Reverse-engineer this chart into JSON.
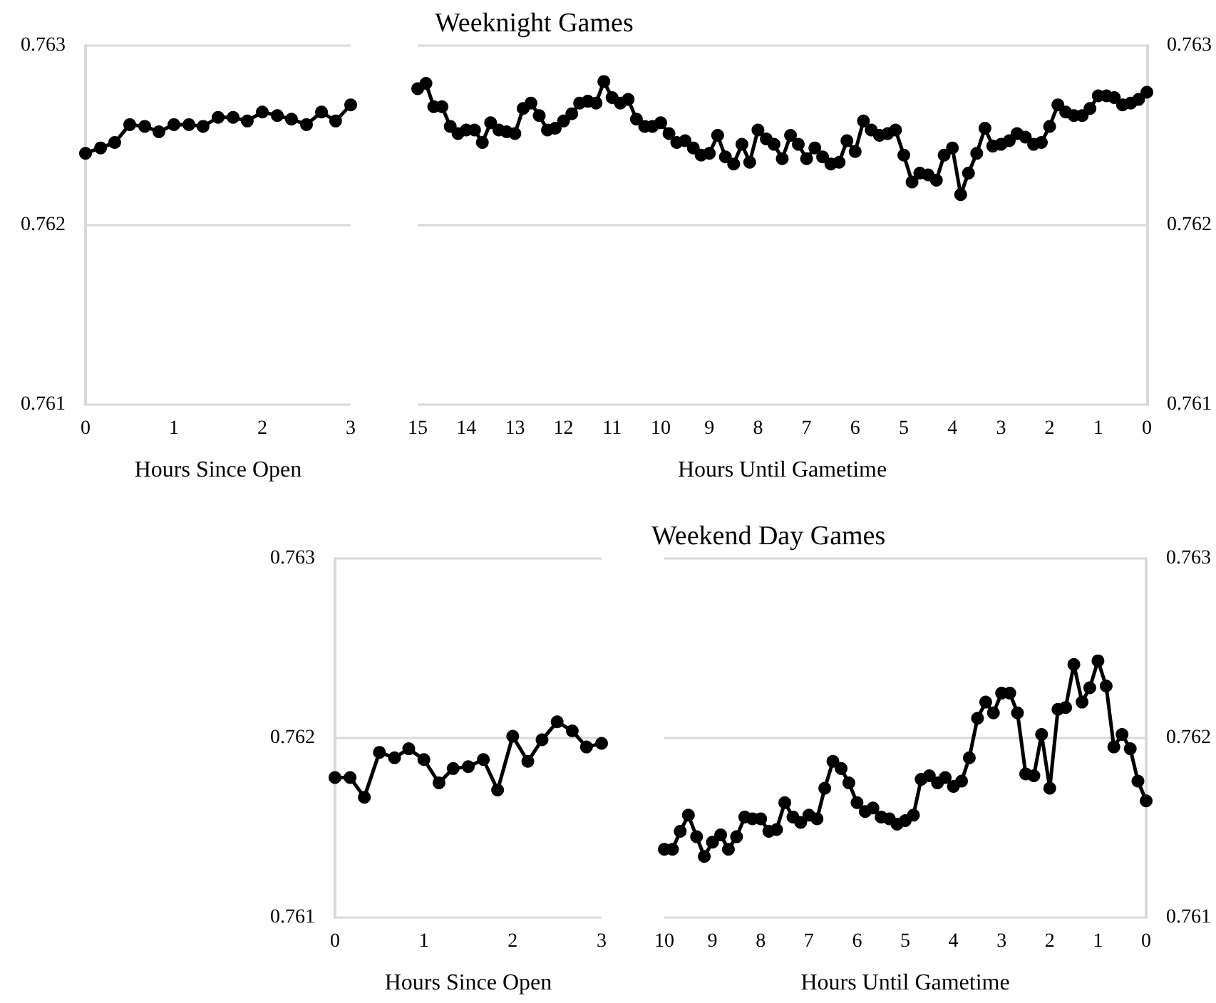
{
  "chart_data": [
    {
      "type": "line",
      "xlabel": "Hours Since Open",
      "x": [
        0,
        0.17,
        0.33,
        0.5,
        0.67,
        0.83,
        1,
        1.17,
        1.33,
        1.5,
        1.67,
        1.83,
        2,
        2.17,
        2.33,
        2.5,
        2.67,
        2.83,
        3
      ],
      "series": [
        {
          "color": "#000000",
          "values": [
            0.7624,
            0.76243,
            0.76246,
            0.76256,
            0.76255,
            0.76252,
            0.76256,
            0.76256,
            0.76255,
            0.7626,
            0.7626,
            0.76258,
            0.76263,
            0.76261,
            0.76259,
            0.76256,
            0.76263,
            0.76258,
            0.76267
          ]
        }
      ],
      "xlim": [
        0,
        3
      ],
      "xticks": [
        0,
        1,
        2,
        3
      ],
      "ylim": [
        0.761,
        0.763
      ],
      "yticks": [
        0.761,
        0.762,
        0.763
      ],
      "grid": "y",
      "marker": "circle"
    },
    {
      "type": "line",
      "title": "Weeknight Games",
      "xlabel": "Hours Until Gametime",
      "x": [
        15,
        14.83,
        14.67,
        14.5,
        14.33,
        14.17,
        14,
        13.83,
        13.67,
        13.5,
        13.33,
        13.17,
        13,
        12.83,
        12.67,
        12.5,
        12.33,
        12.17,
        12,
        11.83,
        11.67,
        11.5,
        11.33,
        11.17,
        11,
        10.83,
        10.67,
        10.5,
        10.33,
        10.17,
        10,
        9.83,
        9.67,
        9.5,
        9.33,
        9.17,
        9,
        8.83,
        8.67,
        8.5,
        8.33,
        8.17,
        8,
        7.83,
        7.67,
        7.5,
        7.33,
        7.17,
        7,
        6.83,
        6.67,
        6.5,
        6.33,
        6.17,
        6,
        5.83,
        5.67,
        5.5,
        5.33,
        5.17,
        5,
        4.83,
        4.67,
        4.5,
        4.33,
        4.17,
        4,
        3.83,
        3.67,
        3.5,
        3.33,
        3.17,
        3,
        2.83,
        2.67,
        2.5,
        2.33,
        2.17,
        2,
        1.83,
        1.67,
        1.5,
        1.33,
        1.17,
        1,
        0.83,
        0.67,
        0.5,
        0.33,
        0.17,
        0
      ],
      "series": [
        {
          "color": "#000000",
          "values": [
            0.76276,
            0.76279,
            0.76266,
            0.76266,
            0.76255,
            0.76251,
            0.76253,
            0.76253,
            0.76246,
            0.76257,
            0.76253,
            0.76252,
            0.76251,
            0.76265,
            0.76268,
            0.76261,
            0.76253,
            0.76254,
            0.76258,
            0.76262,
            0.76268,
            0.76269,
            0.76268,
            0.7628,
            0.76271,
            0.76268,
            0.7627,
            0.76259,
            0.76255,
            0.76255,
            0.76257,
            0.76251,
            0.76246,
            0.76247,
            0.76243,
            0.76239,
            0.7624,
            0.7625,
            0.76238,
            0.76234,
            0.76245,
            0.76235,
            0.76253,
            0.76248,
            0.76245,
            0.76237,
            0.7625,
            0.76245,
            0.76237,
            0.76243,
            0.76238,
            0.76234,
            0.76235,
            0.76247,
            0.76241,
            0.76258,
            0.76253,
            0.7625,
            0.76251,
            0.76253,
            0.76239,
            0.76224,
            0.76229,
            0.76228,
            0.76225,
            0.76239,
            0.76243,
            0.76217,
            0.76229,
            0.7624,
            0.76254,
            0.76244,
            0.76245,
            0.76247,
            0.76251,
            0.76249,
            0.76245,
            0.76246,
            0.76255,
            0.76267,
            0.76263,
            0.76261,
            0.76261,
            0.76265,
            0.76272,
            0.76272,
            0.76271,
            0.76267,
            0.76268,
            0.7627,
            0.76274
          ]
        }
      ],
      "xlim": [
        15,
        0
      ],
      "xticks": [
        15,
        14,
        13,
        12,
        11,
        10,
        9,
        8,
        7,
        6,
        5,
        4,
        3,
        2,
        1,
        0
      ],
      "ylim": [
        0.761,
        0.763
      ],
      "yticks": [
        0.761,
        0.762,
        0.763
      ],
      "grid": "y",
      "marker": "circle"
    },
    {
      "type": "line",
      "xlabel": "Hours Since Open",
      "x": [
        0,
        0.17,
        0.33,
        0.5,
        0.67,
        0.83,
        1,
        1.17,
        1.33,
        1.5,
        1.67,
        1.83,
        2,
        2.17,
        2.33,
        2.5,
        2.67,
        2.83,
        3
      ],
      "series": [
        {
          "color": "#000000",
          "values": [
            0.76178,
            0.76178,
            0.76167,
            0.76192,
            0.76189,
            0.76194,
            0.76188,
            0.76175,
            0.76183,
            0.76184,
            0.76188,
            0.76171,
            0.76201,
            0.76187,
            0.76199,
            0.76209,
            0.76204,
            0.76195,
            0.76197
          ]
        }
      ],
      "xlim": [
        0,
        3
      ],
      "xticks": [
        0,
        1,
        2,
        3
      ],
      "ylim": [
        0.761,
        0.763
      ],
      "yticks": [
        0.761,
        0.762,
        0.763
      ],
      "grid": "y",
      "marker": "circle"
    },
    {
      "type": "line",
      "title": "Weekend Day Games",
      "xlabel": "Hours Until Gametime",
      "x": [
        10,
        9.83,
        9.67,
        9.5,
        9.33,
        9.17,
        9,
        8.83,
        8.67,
        8.5,
        8.33,
        8.17,
        8,
        7.83,
        7.67,
        7.5,
        7.33,
        7.17,
        7,
        6.83,
        6.67,
        6.5,
        6.33,
        6.17,
        6,
        5.83,
        5.67,
        5.5,
        5.33,
        5.17,
        5,
        4.83,
        4.67,
        4.5,
        4.33,
        4.17,
        4,
        3.83,
        3.67,
        3.5,
        3.33,
        3.17,
        3,
        2.83,
        2.67,
        2.5,
        2.33,
        2.17,
        2,
        1.83,
        1.67,
        1.5,
        1.33,
        1.17,
        1,
        0.83,
        0.67,
        0.5,
        0.33,
        0.17,
        0
      ],
      "series": [
        {
          "color": "#000000",
          "values": [
            0.76138,
            0.76138,
            0.76148,
            0.76157,
            0.76145,
            0.76134,
            0.76142,
            0.76146,
            0.76138,
            0.76145,
            0.76156,
            0.76155,
            0.76155,
            0.76148,
            0.76149,
            0.76164,
            0.76156,
            0.76153,
            0.76157,
            0.76155,
            0.76172,
            0.76187,
            0.76183,
            0.76175,
            0.76164,
            0.76159,
            0.76161,
            0.76156,
            0.76155,
            0.76152,
            0.76154,
            0.76157,
            0.76177,
            0.76179,
            0.76175,
            0.76178,
            0.76173,
            0.76176,
            0.76189,
            0.76211,
            0.7622,
            0.76214,
            0.76225,
            0.76225,
            0.76214,
            0.7618,
            0.76179,
            0.76202,
            0.76172,
            0.76216,
            0.76217,
            0.76241,
            0.7622,
            0.76228,
            0.76243,
            0.76229,
            0.76195,
            0.76202,
            0.76194,
            0.76176,
            0.76165
          ]
        }
      ],
      "xlim": [
        10,
        0
      ],
      "xticks": [
        10,
        9,
        8,
        7,
        6,
        5,
        4,
        3,
        2,
        1,
        0
      ],
      "ylim": [
        0.761,
        0.763
      ],
      "yticks": [
        0.761,
        0.762,
        0.763
      ],
      "grid": "y",
      "marker": "circle"
    }
  ]
}
